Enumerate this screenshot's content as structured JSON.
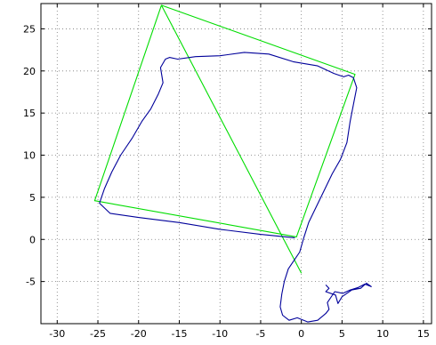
{
  "chart_data": {
    "type": "line",
    "title": "",
    "xlabel": "",
    "ylabel": "",
    "xlim": [
      -32,
      16
    ],
    "ylim": [
      -10,
      28
    ],
    "grid": true,
    "xticks": [
      -30,
      -25,
      -20,
      -15,
      -10,
      -5,
      0,
      5,
      10,
      15
    ],
    "yticks": [
      -5,
      0,
      5,
      10,
      15,
      20,
      25
    ],
    "series": [
      {
        "color": "#00dd00",
        "x": [
          0,
          -17.2,
          6.6,
          -0.6,
          -25.4,
          -17.2
        ],
        "y": [
          -4,
          27.8,
          19.6,
          0.3,
          4.6,
          27.8
        ]
      },
      {
        "color": "#00009a",
        "x": [
          -0.8,
          -5,
          -10,
          -15,
          -20,
          -23.5,
          -24.8,
          -24.2,
          -23.3,
          -22.2,
          -20.8,
          -19.6,
          -18.5,
          -17.6,
          -17.0,
          -17.3,
          -16.7,
          -16.2,
          -15.2,
          -13,
          -10,
          -7,
          -4,
          -1,
          2,
          4,
          5.2,
          5.8,
          6.4,
          6.8,
          6.5,
          6.0,
          5.6,
          4.8,
          3.8,
          2.8,
          1.8,
          0.9,
          0.3,
          -0.2,
          -0.9,
          -1.6,
          -2.1,
          -2.4,
          -2.6,
          -2.3,
          -1.5,
          -0.5,
          0.8,
          2.0,
          3.0,
          3.4,
          3.2,
          4.1,
          5.1,
          6.0,
          7.0,
          7.8,
          8.6,
          8.0,
          7.3,
          6.2,
          5.0,
          4.5,
          4.2,
          3.0,
          3.4,
          3.0
        ],
        "y": [
          0.2,
          0.6,
          1.2,
          2.0,
          2.6,
          3.1,
          4.3,
          6.0,
          8.0,
          10.0,
          12.0,
          14.0,
          15.5,
          17.2,
          18.6,
          20.4,
          21.4,
          21.6,
          21.4,
          21.7,
          21.8,
          22.2,
          22.0,
          21.1,
          20.6,
          19.7,
          19.3,
          19.5,
          19.2,
          18.0,
          16.5,
          14.0,
          11.5,
          9.5,
          7.8,
          5.8,
          3.8,
          2.0,
          0.2,
          -1.5,
          -2.5,
          -3.5,
          -5.0,
          -6.5,
          -8.0,
          -9.0,
          -9.6,
          -9.3,
          -9.8,
          -9.6,
          -8.8,
          -8.3,
          -7.5,
          -6.2,
          -6.4,
          -6.0,
          -5.7,
          -5.3,
          -5.6,
          -5.2,
          -5.8,
          -6.0,
          -6.8,
          -7.6,
          -6.6,
          -6.2,
          -5.8,
          -5.4
        ]
      }
    ]
  }
}
